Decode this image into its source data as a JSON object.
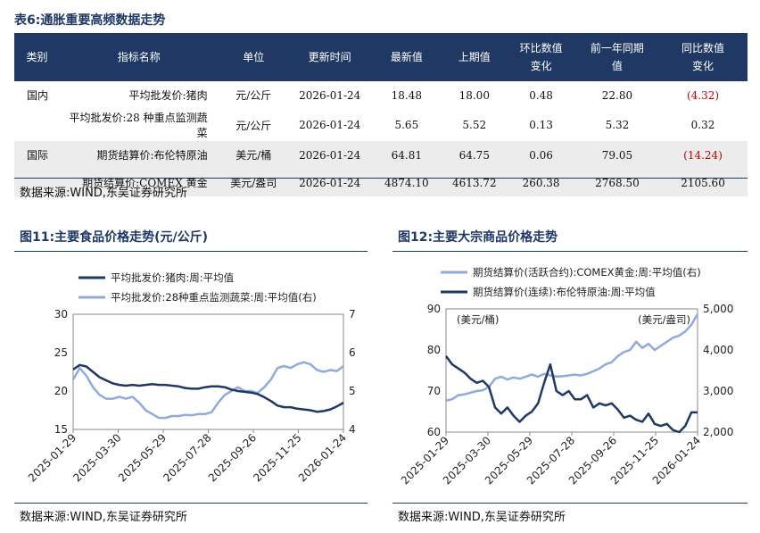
{
  "table": {
    "title": "表6:通胀重要高频数据走势",
    "headers": [
      "类别",
      "指标名称",
      "单位",
      "更新时间",
      "最新值",
      "上期值",
      "环比数值\n变化",
      "前一年同期\n值",
      "同比数值\n变化"
    ],
    "rows": [
      [
        "国内",
        "平均批发价:猪肉",
        "元/公斤",
        "2026-01-24",
        "18.48",
        "18.00",
        "0.48",
        "22.80",
        "(4.32)"
      ],
      [
        "",
        "平均批发价:28 种重点监测蔬菜",
        "元/公斤",
        "2026-01-24",
        "5.65",
        "5.52",
        "0.13",
        "5.32",
        "0.32"
      ],
      [
        "国际",
        "期货结算价:布伦特原油",
        "美元/桶",
        "2026-01-24",
        "64.81",
        "64.75",
        "0.06",
        "79.05",
        "(14.24)"
      ],
      [
        "",
        "期货结算价:COMEX 黄金",
        "美元/盎司",
        "2026-01-24",
        "4874.10",
        "4613.72",
        "260.38",
        "2768.50",
        "2105.60"
      ]
    ],
    "source": "数据来源:WIND,东吴证券研究所"
  },
  "colors": {
    "dark": "#1f3864",
    "light": "#8faadc",
    "negative": "#c00000"
  },
  "chart_data": [
    {
      "type": "line",
      "title": "图11:主要食品价格走势(元/公斤)",
      "source": "数据来源:WIND,东吴证券研究所",
      "x_ticks": [
        "2025-01-29",
        "2025-03-30",
        "2025-05-29",
        "2025-07-28",
        "2025-09-26",
        "2025-11-25",
        "2026-01-24"
      ],
      "ylim_left": [
        15,
        30
      ],
      "yticks_left": [
        15,
        20,
        25,
        30
      ],
      "ylim_right": [
        4,
        7
      ],
      "yticks_right": [
        4,
        5,
        6,
        7
      ],
      "series": [
        {
          "name": "平均批发价:猪肉:周:平均值",
          "axis": "left",
          "values": [
            22.8,
            23.4,
            23.2,
            22.5,
            21.8,
            21.4,
            21.0,
            20.8,
            20.7,
            20.8,
            20.7,
            20.8,
            20.9,
            20.8,
            20.8,
            20.7,
            20.6,
            20.4,
            20.3,
            20.3,
            20.5,
            20.6,
            20.6,
            20.5,
            20.2,
            20.0,
            19.9,
            19.8,
            19.6,
            19.2,
            18.7,
            18.1,
            17.9,
            17.9,
            17.7,
            17.6,
            17.5,
            17.3,
            17.4,
            17.6,
            18.0,
            18.48
          ]
        },
        {
          "name": "平均批发价:28种重点监测蔬菜:周:平均值(右)",
          "axis": "right",
          "values": [
            5.3,
            5.6,
            5.4,
            5.1,
            4.9,
            4.8,
            4.8,
            4.85,
            4.8,
            4.85,
            4.7,
            4.5,
            4.4,
            4.3,
            4.3,
            4.35,
            4.35,
            4.38,
            4.37,
            4.4,
            4.4,
            4.45,
            4.7,
            4.9,
            5.0,
            5.1,
            5.0,
            5.0,
            4.95,
            5.1,
            5.3,
            5.6,
            5.65,
            5.6,
            5.7,
            5.75,
            5.7,
            5.55,
            5.5,
            5.55,
            5.52,
            5.65
          ]
        }
      ]
    },
    {
      "type": "line",
      "title": "图12:主要大宗商品价格走势",
      "source": "数据来源:WIND,东吴证券研究所",
      "x_ticks": [
        "2025-01-29",
        "2025-03-30",
        "2025-05-29",
        "2025-07-28",
        "2025-09-26",
        "2025-11-25",
        "2026-01-24"
      ],
      "left_unit": "(美元/桶)",
      "right_unit": "(美元/盎司)",
      "ylim_left": [
        60,
        90
      ],
      "yticks_left": [
        60,
        70,
        80,
        90
      ],
      "ylim_right": [
        2000,
        5000
      ],
      "yticks_right": [
        "2,000",
        "3,000",
        "4,000",
        "5,000"
      ],
      "ylim_right_values": [
        2000,
        3000,
        4000,
        5000
      ],
      "series": [
        {
          "name": "期货结算价(连续):布伦特原油:周:平均值",
          "axis": "left",
          "values": [
            78.5,
            76.5,
            75.5,
            74.5,
            73.0,
            72.0,
            72.5,
            71.0,
            66.0,
            64.5,
            66.0,
            64.0,
            62.5,
            64.0,
            65.0,
            67.0,
            72.0,
            76.5,
            70.0,
            69.0,
            70.0,
            68.0,
            68.0,
            69.0,
            66.0,
            67.0,
            66.5,
            67.0,
            65.5,
            63.5,
            64.0,
            63.0,
            62.5,
            64.5,
            62.0,
            61.5,
            62.0,
            60.5,
            60.0,
            61.5,
            64.8,
            64.81
          ]
        },
        {
          "name": "期货结算价(活跃合约):COMEX黄金:周:平均值(右)",
          "axis": "right",
          "values": [
            2770,
            2800,
            2900,
            2920,
            2960,
            3000,
            3020,
            3100,
            3300,
            3350,
            3280,
            3330,
            3300,
            3350,
            3400,
            3350,
            3420,
            3380,
            3350,
            3360,
            3380,
            3400,
            3380,
            3420,
            3480,
            3550,
            3650,
            3700,
            3850,
            3950,
            4000,
            4200,
            4050,
            4150,
            4000,
            4100,
            4200,
            4300,
            4350,
            4450,
            4613,
            4874
          ]
        }
      ]
    }
  ]
}
